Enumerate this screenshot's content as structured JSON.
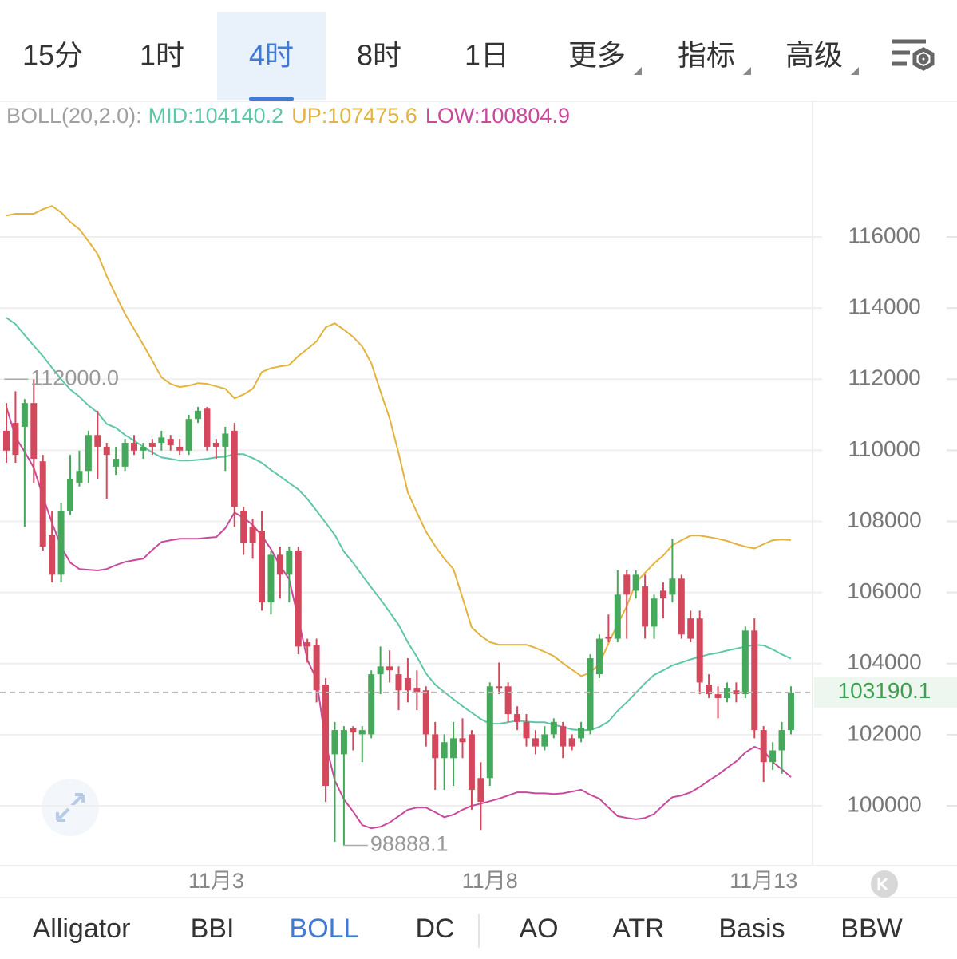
{
  "tabs": [
    "15分",
    "1时",
    "4时",
    "8时",
    "1日"
  ],
  "menus": [
    "更多",
    "指标",
    "高级"
  ],
  "active_tab": 2,
  "indicators": [
    "Alligator",
    "BBI",
    "BOLL",
    "DC",
    "AO",
    "ATR",
    "Basis",
    "BBW"
  ],
  "active_indicator": 2,
  "chart_data": {
    "type": "candlestick",
    "legend_title": "BOLL(20,2.0):",
    "categories": [
      null,
      null,
      null,
      null,
      null,
      null,
      null,
      null,
      null,
      null,
      null,
      null,
      null,
      null,
      null,
      null,
      null,
      null,
      null,
      null,
      null,
      null,
      null,
      "11月3",
      null,
      null,
      null,
      null,
      null,
      null,
      null,
      null,
      null,
      null,
      null,
      null,
      null,
      null,
      null,
      null,
      null,
      null,
      null,
      null,
      null,
      null,
      null,
      null,
      null,
      null,
      null,
      null,
      null,
      "11月8",
      null,
      null,
      null,
      null,
      null,
      null,
      null,
      null,
      null,
      null,
      null,
      null,
      null,
      null,
      null,
      null,
      null,
      null,
      null,
      null,
      null,
      null,
      null,
      null,
      null,
      null,
      null,
      null,
      null,
      "11月13",
      null,
      null,
      null
    ],
    "ohlc": [
      [
        110550,
        111330,
        109650,
        109990
      ],
      [
        110770,
        111660,
        109650,
        109870
      ],
      [
        110660,
        111440,
        107850,
        111330
      ],
      [
        111330,
        112000,
        109080,
        109760
      ],
      [
        109690,
        109870,
        107180,
        107290
      ],
      [
        107620,
        108300,
        106280,
        106500
      ],
      [
        106500,
        108520,
        106280,
        108300
      ],
      [
        108300,
        109870,
        108180,
        109200
      ],
      [
        109080,
        109990,
        108980,
        109420
      ],
      [
        109420,
        110550,
        109080,
        110430
      ],
      [
        110430,
        111110,
        109200,
        110100
      ],
      [
        110100,
        110210,
        108640,
        109870
      ],
      [
        109540,
        110100,
        109310,
        109760
      ],
      [
        109540,
        110320,
        109420,
        110210
      ],
      [
        110210,
        110430,
        109870,
        109990
      ],
      [
        109990,
        110210,
        109760,
        110100
      ],
      [
        110210,
        110320,
        109870,
        110100
      ],
      [
        110210,
        110550,
        109990,
        110360
      ],
      [
        110320,
        110430,
        109990,
        110140
      ],
      [
        110100,
        110320,
        109870,
        109990
      ],
      [
        109990,
        111000,
        109870,
        110880
      ],
      [
        110880,
        111220,
        110770,
        111110
      ],
      [
        111170,
        111220,
        109990,
        110100
      ],
      [
        110210,
        110320,
        109760,
        110100
      ],
      [
        110100,
        110660,
        109420,
        110470
      ],
      [
        110550,
        110770,
        107850,
        108410
      ],
      [
        108300,
        108410,
        107060,
        107400
      ],
      [
        107850,
        108070,
        106950,
        107400
      ],
      [
        107740,
        108300,
        105490,
        105720
      ],
      [
        105720,
        107180,
        105380,
        107060
      ],
      [
        107060,
        107290,
        105830,
        106500
      ],
      [
        106500,
        107290,
        105720,
        107180
      ],
      [
        107180,
        107290,
        104260,
        104480
      ],
      [
        104600,
        104700,
        104030,
        104480
      ],
      [
        104530,
        104700,
        102910,
        103250
      ],
      [
        103410,
        103590,
        100110,
        100560
      ],
      [
        101450,
        102360,
        98990,
        102130
      ],
      [
        101450,
        102240,
        98888.1,
        102130
      ],
      [
        102180,
        102240,
        101560,
        102060
      ],
      [
        102010,
        102240,
        101230,
        102130
      ],
      [
        102010,
        103810,
        101900,
        103700
      ],
      [
        103700,
        104480,
        103140,
        103920
      ],
      [
        103920,
        104370,
        103470,
        103810
      ],
      [
        103700,
        103920,
        102690,
        103250
      ],
      [
        103590,
        104150,
        102910,
        103250
      ],
      [
        103320,
        103810,
        102690,
        103200
      ],
      [
        103250,
        103360,
        101670,
        102010
      ],
      [
        102010,
        102360,
        100450,
        101340
      ],
      [
        101340,
        102010,
        100450,
        101790
      ],
      [
        101340,
        102360,
        100560,
        101900
      ],
      [
        101900,
        102460,
        101340,
        101790
      ],
      [
        102010,
        102130,
        99890,
        100450
      ],
      [
        100780,
        101230,
        99320,
        100110
      ],
      [
        100780,
        103470,
        100560,
        103360
      ],
      [
        103360,
        104030,
        103140,
        103320
      ],
      [
        103360,
        103470,
        102360,
        102580
      ],
      [
        102580,
        102800,
        102130,
        102360
      ],
      [
        102360,
        102580,
        101670,
        101900
      ],
      [
        101900,
        102130,
        101450,
        101670
      ],
      [
        101670,
        102240,
        101560,
        102010
      ],
      [
        102010,
        102460,
        101900,
        102360
      ],
      [
        102240,
        102360,
        101340,
        101670
      ],
      [
        101900,
        102010,
        101560,
        101670
      ],
      [
        101900,
        102360,
        101790,
        102200
      ],
      [
        102130,
        104260,
        102010,
        104150
      ],
      [
        103700,
        104820,
        103590,
        104700
      ],
      [
        104750,
        105380,
        104600,
        104700
      ],
      [
        104700,
        106620,
        104600,
        105940
      ],
      [
        106500,
        106620,
        104700,
        105940
      ],
      [
        106050,
        106620,
        105830,
        106500
      ],
      [
        106170,
        106500,
        104700,
        105040
      ],
      [
        105040,
        105940,
        104700,
        105830
      ],
      [
        106050,
        106280,
        105270,
        105830
      ],
      [
        105940,
        107510,
        105720,
        106390
      ],
      [
        106390,
        106500,
        104700,
        104820
      ],
      [
        105270,
        105490,
        104600,
        104700
      ],
      [
        105270,
        105490,
        103140,
        103470
      ],
      [
        103410,
        103700,
        103030,
        103140
      ],
      [
        103140,
        103360,
        102460,
        103030
      ],
      [
        103030,
        103470,
        102910,
        103320
      ],
      [
        103250,
        103470,
        102910,
        103140
      ],
      [
        103140,
        105040,
        103030,
        104930
      ],
      [
        104930,
        105270,
        101900,
        102130
      ],
      [
        102130,
        102240,
        100670,
        101230
      ],
      [
        101230,
        101790,
        101010,
        101560
      ],
      [
        101560,
        102360,
        100900,
        102130
      ],
      [
        102130,
        103360,
        102010,
        103190.1
      ]
    ],
    "up_color": "#46a85a",
    "down_color": "#d4485d",
    "series": [
      {
        "name": "MID:104140.2",
        "color": "#5fc6a8",
        "values": [
          113730,
          113550,
          113240,
          112940,
          112650,
          112320,
          112000,
          111710,
          111510,
          111260,
          111060,
          110740,
          110630,
          110430,
          110270,
          110100,
          109940,
          109800,
          109760,
          109710,
          109710,
          109730,
          109760,
          109800,
          109820,
          109890,
          109890,
          109780,
          109650,
          109450,
          109270,
          109080,
          108900,
          108630,
          108300,
          107960,
          107620,
          107150,
          106840,
          106480,
          106140,
          105810,
          105450,
          105090,
          104600,
          104190,
          103720,
          103410,
          103200,
          103000,
          102800,
          102620,
          102440,
          102310,
          102310,
          102350,
          102400,
          102370,
          102350,
          102350,
          102280,
          102220,
          102150,
          102130,
          102130,
          102220,
          102370,
          102670,
          102910,
          103180,
          103450,
          103680,
          103810,
          103950,
          104030,
          104120,
          104190,
          104260,
          104300,
          104370,
          104420,
          104480,
          104530,
          104510,
          104400,
          104260,
          104140.2
        ]
      },
      {
        "name": "UP:107475.6",
        "color": "#e3b33f",
        "values": [
          116600,
          116650,
          116650,
          116650,
          116780,
          116870,
          116690,
          116420,
          116220,
          115880,
          115520,
          114900,
          114360,
          113840,
          113410,
          112970,
          112520,
          112050,
          111870,
          111780,
          111820,
          111890,
          111870,
          111800,
          111730,
          111460,
          111570,
          111730,
          112200,
          112310,
          112360,
          112400,
          112650,
          112850,
          113060,
          113460,
          113570,
          113390,
          113190,
          112920,
          112450,
          111660,
          110900,
          109910,
          108820,
          108250,
          107710,
          107310,
          106950,
          106660,
          105850,
          105020,
          104780,
          104600,
          104530,
          104530,
          104530,
          104530,
          104440,
          104330,
          104210,
          104010,
          103830,
          103650,
          103740,
          103990,
          104570,
          105110,
          105610,
          106280,
          106550,
          106820,
          107040,
          107330,
          107470,
          107600,
          107600,
          107560,
          107510,
          107450,
          107360,
          107290,
          107240,
          107360,
          107470,
          107490,
          107475.6
        ]
      },
      {
        "name": "LOW:100804.9",
        "color": "#c84a9d",
        "values": [
          111220,
          110370,
          109960,
          109510,
          108700,
          107960,
          107290,
          106840,
          106660,
          106640,
          106620,
          106660,
          106770,
          106860,
          106910,
          106950,
          107200,
          107420,
          107470,
          107510,
          107510,
          107510,
          107540,
          107560,
          107810,
          108250,
          108100,
          107900,
          107600,
          107220,
          106750,
          106370,
          105250,
          104100,
          103560,
          101750,
          100710,
          100180,
          99840,
          99460,
          99370,
          99410,
          99530,
          99710,
          99890,
          99950,
          99950,
          99820,
          99680,
          99750,
          99890,
          100000,
          100060,
          100130,
          100200,
          100290,
          100380,
          100380,
          100350,
          100350,
          100330,
          100350,
          100400,
          100450,
          100310,
          100200,
          99950,
          99710,
          99660,
          99620,
          99660,
          99770,
          100020,
          100240,
          100290,
          100380,
          100530,
          100710,
          100870,
          101070,
          101250,
          101500,
          101660,
          101560,
          101230,
          101030,
          100804.9
        ]
      }
    ],
    "ylim": [
      98317,
      119860
    ],
    "yticks": [
      100000,
      102000,
      104000,
      106000,
      108000,
      110000,
      112000,
      114000,
      116000
    ],
    "grid": true,
    "last_price": 103190.1,
    "max_marker": {
      "value": 112000,
      "label": "112000.0"
    },
    "min_marker": 98888.1
  }
}
